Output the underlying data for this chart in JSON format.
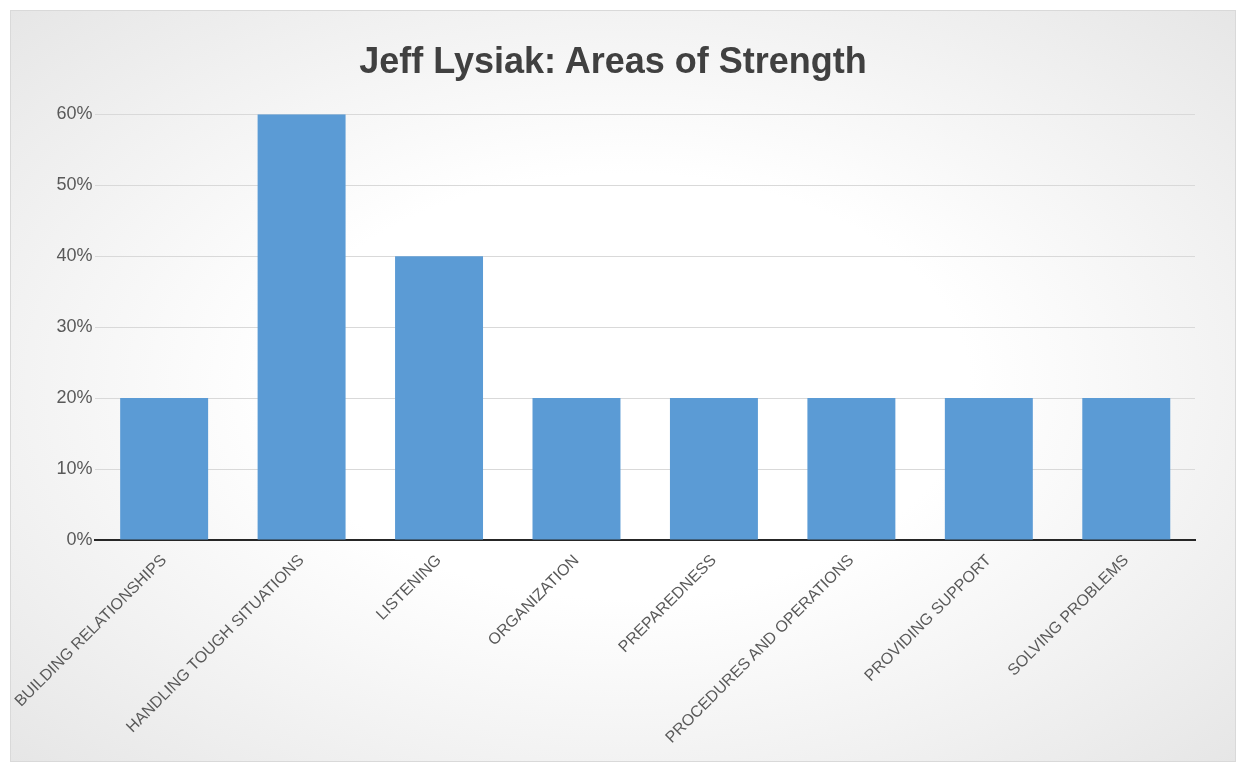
{
  "chart_data": {
    "type": "bar",
    "title": "Jeff Lysiak: Areas of Strength",
    "categories": [
      "BUILDING RELATIONSHIPS",
      "HANDLING TOUGH SITUATIONS",
      "LISTENING",
      "ORGANIZATION",
      "PREPAREDNESS",
      "PROCEDURES AND OPERATIONS",
      "PROVIDING SUPPORT",
      "SOLVING PROBLEMS"
    ],
    "values": [
      20,
      60,
      40,
      20,
      20,
      20,
      20,
      20
    ],
    "color": "#5b9bd5",
    "ylim": [
      0,
      60
    ],
    "yticks": [
      {
        "value": 0,
        "label": "0%"
      },
      {
        "value": 10,
        "label": "10%"
      },
      {
        "value": 20,
        "label": "20%"
      },
      {
        "value": 30,
        "label": "30%"
      },
      {
        "value": 40,
        "label": "40%"
      },
      {
        "value": 50,
        "label": "50%"
      },
      {
        "value": 60,
        "label": "60%"
      }
    ],
    "grid": "y"
  }
}
